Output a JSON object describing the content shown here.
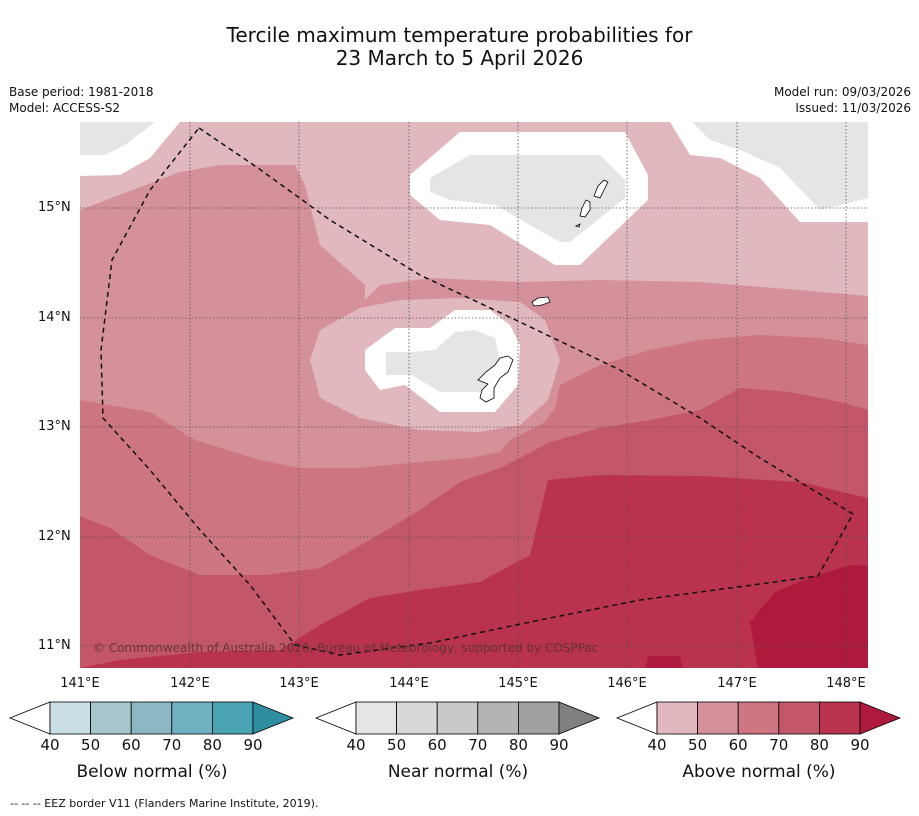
{
  "title_line1": "Tercile maximum temperature probabilities for",
  "title_line2": "23 March to 5 April 2026",
  "meta": {
    "base_period": "Base period: 1981-2018",
    "model": "Model: ACCESS-S2",
    "model_run": "Model run: 09/03/2026",
    "issued": "Issued: 11/03/2026"
  },
  "map": {
    "lat_labels": [
      "15°N",
      "14°N",
      "13°N",
      "12°N",
      "11°N"
    ],
    "lon_labels": [
      "141°E",
      "142°E",
      "143°E",
      "144°E",
      "145°E",
      "146°E",
      "147°E",
      "148°E"
    ],
    "copyright": "© Commonwealth of Australia 2026, Bureau of Meteorology, supported by COSPPac"
  },
  "colorbars": {
    "ticks": [
      "40",
      "50",
      "60",
      "70",
      "80",
      "90"
    ],
    "below": {
      "label": "Below normal (%)",
      "colors": [
        "#c9dfe5",
        "#a7c6cb",
        "#8cb8c3",
        "#6fb0c1",
        "#4aa3b2",
        "#2e8ea0"
      ]
    },
    "near": {
      "label": "Near normal (%)",
      "colors": [
        "#e5e5e5",
        "#d8d8d8",
        "#c9c9c9",
        "#b4b4b4",
        "#a0a0a0",
        "#808080"
      ]
    },
    "above": {
      "label": "Above normal (%)",
      "colors": [
        "#e0b8bd",
        "#d4919a",
        "#cd7580",
        "#c4566a",
        "#b9334e",
        "#ad1a3d"
      ]
    }
  },
  "footer": "--  --  -- EEZ border V11 (Flanders Marine Institute, 2019)."
}
